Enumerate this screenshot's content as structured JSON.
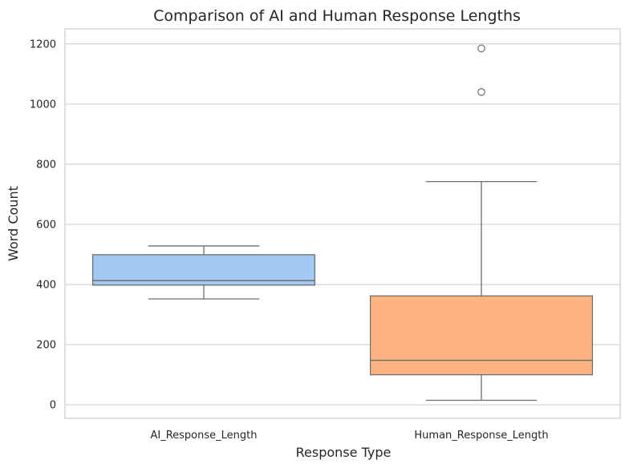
{
  "chart_data": {
    "type": "box",
    "title": "Comparison of AI and Human Response Lengths",
    "xlabel": "Response Type",
    "ylabel": "Word Count",
    "ylim": [
      -45,
      1250
    ],
    "yticks": [
      0,
      200,
      400,
      600,
      800,
      1000,
      1200
    ],
    "grid": true,
    "categories": [
      "AI_Response_Length",
      "Human_Response_Length"
    ],
    "boxes": [
      {
        "category": "AI_Response_Length",
        "whisker_low": 352,
        "q1": 398,
        "median": 413,
        "q3": 499,
        "whisker_high": 528,
        "outliers": [],
        "color": "#a1c9f4"
      },
      {
        "category": "Human_Response_Length",
        "whisker_low": 15,
        "q1": 100,
        "median": 148,
        "q3": 362,
        "whisker_high": 742,
        "outliers": [
          1040,
          1185
        ],
        "color": "#ffb482"
      }
    ]
  }
}
